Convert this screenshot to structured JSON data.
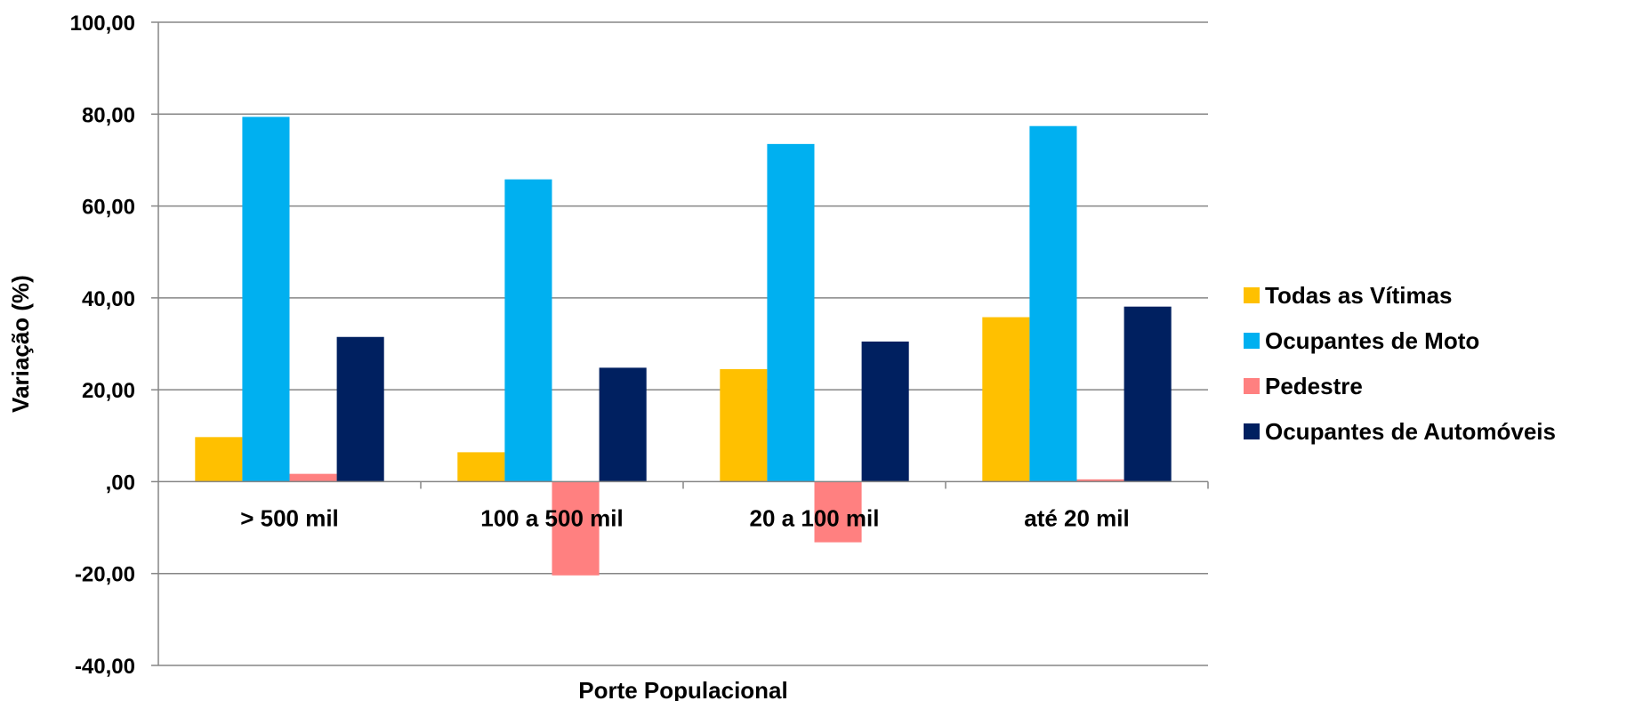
{
  "chart_data": {
    "type": "bar",
    "categories": [
      "> 500 mil",
      "100 a 500 mil",
      "20 a 100 mil",
      "até 20 mil"
    ],
    "series": [
      {
        "name": "Todas as Vítimas",
        "color": "#FFC000",
        "values": [
          9.7,
          6.4,
          24.5,
          35.8
        ]
      },
      {
        "name": "Ocupantes de Moto",
        "color": "#00B0F0",
        "values": [
          79.4,
          65.8,
          73.5,
          77.4
        ]
      },
      {
        "name": "Pedestre",
        "color": "#FF8080",
        "values": [
          1.7,
          -20.4,
          -13.2,
          0.5
        ]
      },
      {
        "name": "Ocupantes de Automóveis",
        "color": "#002060",
        "values": [
          31.5,
          24.8,
          30.5,
          38.1
        ]
      }
    ],
    "xlabel": "Porte Populacional",
    "ylabel": "Variação (%)",
    "ylim": [
      -40,
      100
    ],
    "yticks": [
      100,
      80,
      60,
      40,
      20,
      0,
      -20,
      -40
    ],
    "ytick_labels": [
      "100,00",
      "80,00",
      "60,00",
      "40,00",
      "20,00",
      ",00",
      "-20,00",
      "-40,00"
    ],
    "grid": true,
    "legend_position": "right"
  }
}
